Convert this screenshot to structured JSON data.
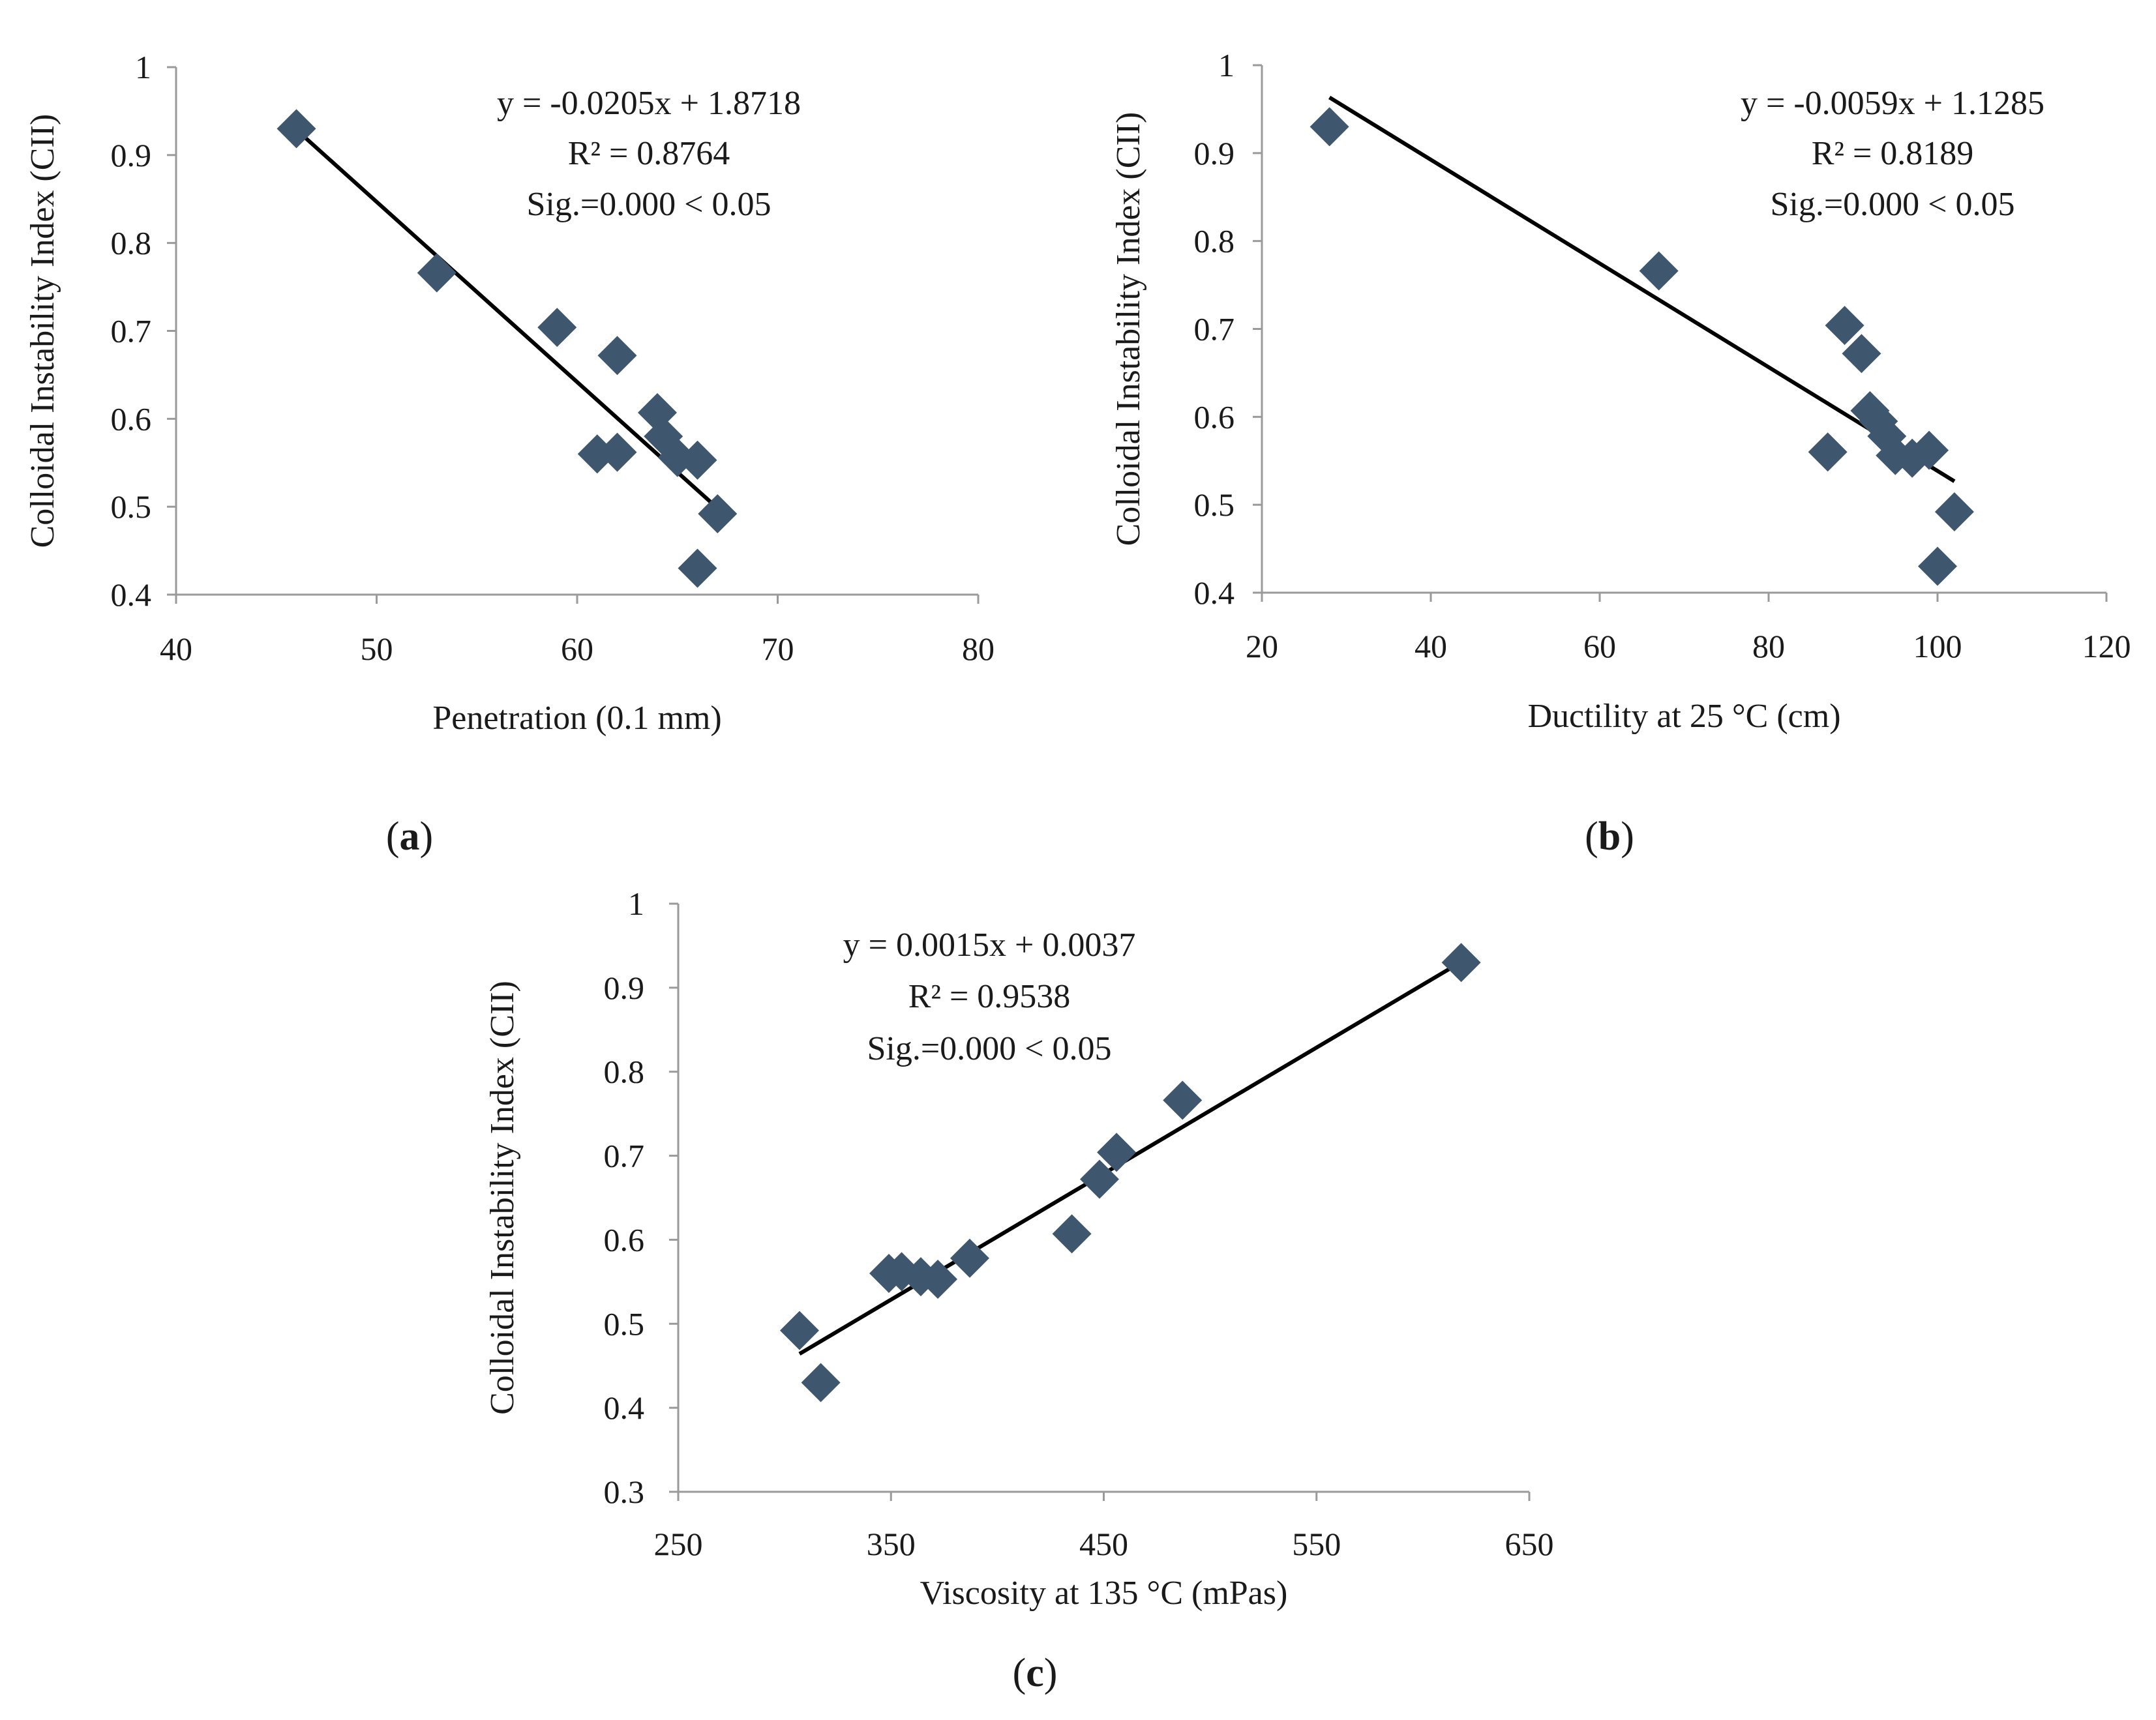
{
  "marker_color": "#3f566f",
  "trend_color": "#000000",
  "axis_color": "#9a9a9a",
  "chart_data": [
    {
      "type": "scatter",
      "panel_label": "a",
      "xlabel": "Penetration (0.1 mm)",
      "ylabel": "Colloidal Instability Index (CII)",
      "xlim": [
        40,
        80
      ],
      "ylim": [
        0.4,
        1
      ],
      "x_ticks": [
        40,
        50,
        60,
        70,
        80
      ],
      "y_ticks": [
        0.4,
        0.5,
        0.6,
        0.7,
        0.8,
        0.9,
        1
      ],
      "x_tick_labels": [
        "40",
        "50",
        "60",
        "70",
        "80"
      ],
      "y_tick_labels": [
        "0.4",
        "0.5",
        "0.6",
        "0.7",
        "0.8",
        "0.9",
        "1"
      ],
      "grid": false,
      "points": [
        {
          "x": 46,
          "y": 0.93
        },
        {
          "x": 53,
          "y": 0.766
        },
        {
          "x": 59,
          "y": 0.704
        },
        {
          "x": 62,
          "y": 0.672
        },
        {
          "x": 64,
          "y": 0.607
        },
        {
          "x": 64.3,
          "y": 0.58
        },
        {
          "x": 65,
          "y": 0.556
        },
        {
          "x": 66,
          "y": 0.553
        },
        {
          "x": 61,
          "y": 0.56
        },
        {
          "x": 62,
          "y": 0.562
        },
        {
          "x": 67,
          "y": 0.492
        },
        {
          "x": 66,
          "y": 0.43
        }
      ],
      "trendline": {
        "slope": -0.0205,
        "intercept": 1.8718,
        "x_range": [
          46,
          67
        ]
      },
      "annotations": [
        "y = -0.0205x + 1.8718",
        "R² = 0.8764",
        "Sig.=0.000 < 0.05"
      ]
    },
    {
      "type": "scatter",
      "panel_label": "b",
      "xlabel": "Ductility at 25 °C (cm)",
      "ylabel": "Colloidal Instability Index (CII)",
      "xlim": [
        20,
        120
      ],
      "ylim": [
        0.4,
        1
      ],
      "x_ticks": [
        20,
        40,
        60,
        80,
        100,
        120
      ],
      "y_ticks": [
        0.4,
        0.5,
        0.6,
        0.7,
        0.8,
        0.9,
        1
      ],
      "x_tick_labels": [
        "20",
        "40",
        "60",
        "80",
        "100",
        "120"
      ],
      "y_tick_labels": [
        "0.4",
        "0.5",
        "0.6",
        "0.7",
        "0.8",
        "0.9",
        "1"
      ],
      "grid": false,
      "points": [
        {
          "x": 28,
          "y": 0.93
        },
        {
          "x": 67,
          "y": 0.766
        },
        {
          "x": 89,
          "y": 0.704
        },
        {
          "x": 91,
          "y": 0.672
        },
        {
          "x": 92,
          "y": 0.607
        },
        {
          "x": 93,
          "y": 0.595
        },
        {
          "x": 94,
          "y": 0.578
        },
        {
          "x": 95,
          "y": 0.556
        },
        {
          "x": 97,
          "y": 0.553
        },
        {
          "x": 87,
          "y": 0.56
        },
        {
          "x": 99,
          "y": 0.562
        },
        {
          "x": 102,
          "y": 0.492
        },
        {
          "x": 100,
          "y": 0.43
        }
      ],
      "trendline": {
        "slope": -0.0059,
        "intercept": 1.1285,
        "x_range": [
          28,
          102
        ]
      },
      "annotations": [
        "y = -0.0059x + 1.1285",
        "R² = 0.8189",
        "Sig.=0.000 < 0.05"
      ]
    },
    {
      "type": "scatter",
      "panel_label": "c",
      "xlabel": "Viscosity at 135 °C  (mPas)",
      "ylabel": "Colloidal Instability Index (CII)",
      "xlim": [
        250,
        650
      ],
      "ylim": [
        0.3,
        1
      ],
      "x_ticks": [
        250,
        350,
        450,
        550,
        650
      ],
      "y_ticks": [
        0.3,
        0.4,
        0.5,
        0.6,
        0.7,
        0.8,
        0.9,
        1
      ],
      "x_tick_labels": [
        "250",
        "350",
        "450",
        "550",
        "650"
      ],
      "y_tick_labels": [
        "0.3",
        "0.4",
        "0.5",
        "0.6",
        "0.7",
        "0.8",
        "0.9",
        "1"
      ],
      "grid": false,
      "points": [
        {
          "x": 618,
          "y": 0.93
        },
        {
          "x": 487,
          "y": 0.766
        },
        {
          "x": 456,
          "y": 0.704
        },
        {
          "x": 448,
          "y": 0.672
        },
        {
          "x": 435,
          "y": 0.607
        },
        {
          "x": 387,
          "y": 0.578
        },
        {
          "x": 372,
          "y": 0.553
        },
        {
          "x": 364,
          "y": 0.556
        },
        {
          "x": 349,
          "y": 0.56
        },
        {
          "x": 355,
          "y": 0.562
        },
        {
          "x": 307,
          "y": 0.492
        },
        {
          "x": 317,
          "y": 0.43
        }
      ],
      "trendline": {
        "slope": 0.0015,
        "intercept": 0.0037,
        "x_range": [
          307,
          618
        ]
      },
      "annotations": [
        "y = 0.0015x + 0.0037",
        "R² = 0.9538",
        "Sig.=0.000 < 0.05"
      ]
    }
  ]
}
